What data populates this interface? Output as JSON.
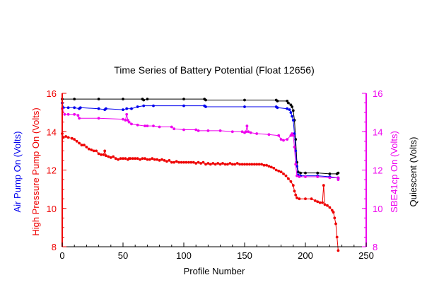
{
  "chart_data": {
    "type": "line",
    "title": "Time Series of Battery Potential (Float 12656)",
    "xlabel": "Profile Number",
    "y_left_labels": [
      {
        "text": "High Pressure Pump On (Volts)",
        "color": "#ee0000"
      },
      {
        "text": "Air Pump On (Volts)",
        "color": "#0000ee"
      }
    ],
    "y_right_labels": [
      {
        "text": "SBE41cp On (Volts)",
        "color": "#ee00ee"
      },
      {
        "text": "Quiescent (Volts)",
        "color": "#000000"
      }
    ],
    "xlim": [
      0,
      250
    ],
    "ylim": [
      8,
      16
    ],
    "x_ticks": [
      0,
      50,
      100,
      150,
      200,
      250
    ],
    "y_ticks": [
      8,
      10,
      12,
      14,
      16
    ],
    "colors": {
      "quiescent": "#000000",
      "air_pump": "#0000ee",
      "sbe41cp": "#ee00ee",
      "hp_pump": "#ee0000"
    },
    "series": [
      {
        "key": "quiescent",
        "points": [
          [
            0,
            15.7
          ],
          [
            10,
            15.7
          ],
          [
            30,
            15.7
          ],
          [
            50,
            15.7
          ],
          [
            66,
            15.7
          ],
          [
            67,
            15.65
          ],
          [
            70,
            15.7
          ],
          [
            100,
            15.7
          ],
          [
            117,
            15.7
          ],
          [
            118,
            15.65
          ],
          [
            150,
            15.65
          ],
          [
            176,
            15.65
          ],
          [
            177,
            15.6
          ],
          [
            185,
            15.6
          ],
          [
            186,
            15.5
          ],
          [
            188,
            15.4
          ],
          [
            189,
            15.3
          ],
          [
            190,
            15.1
          ],
          [
            191,
            14.6
          ],
          [
            192,
            13.6
          ],
          [
            193,
            12.4
          ],
          [
            194,
            11.9
          ],
          [
            196,
            11.85
          ],
          [
            200,
            11.85
          ],
          [
            210,
            11.85
          ],
          [
            220,
            11.8
          ],
          [
            226,
            11.8
          ],
          [
            227,
            11.85
          ]
        ]
      },
      {
        "key": "air_pump",
        "points": [
          [
            0,
            15.5
          ],
          [
            1,
            15.25
          ],
          [
            5,
            15.25
          ],
          [
            10,
            15.25
          ],
          [
            14,
            15.2
          ],
          [
            15,
            15.25
          ],
          [
            30,
            15.2
          ],
          [
            35,
            15.15
          ],
          [
            36,
            15.2
          ],
          [
            50,
            15.15
          ],
          [
            53,
            15.2
          ],
          [
            57,
            15.2
          ],
          [
            62,
            15.3
          ],
          [
            67,
            15.35
          ],
          [
            75,
            15.35
          ],
          [
            100,
            15.35
          ],
          [
            117,
            15.35
          ],
          [
            118,
            15.3
          ],
          [
            150,
            15.3
          ],
          [
            176,
            15.3
          ],
          [
            177,
            15.25
          ],
          [
            185,
            15.2
          ],
          [
            187,
            15.15
          ],
          [
            188,
            15.0
          ],
          [
            189,
            14.8
          ],
          [
            190,
            14.6
          ],
          [
            191,
            13.9
          ],
          [
            192,
            13.0
          ],
          [
            193,
            12.2
          ],
          [
            194,
            11.75
          ],
          [
            196,
            11.7
          ],
          [
            210,
            11.7
          ],
          [
            220,
            11.65
          ],
          [
            227,
            11.6
          ],
          [
            227,
            11.55
          ]
        ]
      },
      {
        "key": "sbe41cp",
        "points": [
          [
            0,
            15.2
          ],
          [
            2,
            14.9
          ],
          [
            5,
            14.9
          ],
          [
            10,
            14.9
          ],
          [
            13,
            14.85
          ],
          [
            14,
            14.7
          ],
          [
            30,
            14.7
          ],
          [
            50,
            14.65
          ],
          [
            52,
            14.6
          ],
          [
            53,
            14.9
          ],
          [
            54,
            14.6
          ],
          [
            55,
            14.5
          ],
          [
            57,
            14.4
          ],
          [
            62,
            14.35
          ],
          [
            68,
            14.3
          ],
          [
            70,
            14.3
          ],
          [
            75,
            14.3
          ],
          [
            80,
            14.25
          ],
          [
            90,
            14.25
          ],
          [
            92,
            14.15
          ],
          [
            100,
            14.1
          ],
          [
            110,
            14.1
          ],
          [
            112,
            14.05
          ],
          [
            120,
            14.05
          ],
          [
            130,
            14.05
          ],
          [
            140,
            14.0
          ],
          [
            148,
            14.0
          ],
          [
            150,
            13.95
          ],
          [
            151,
            14.0
          ],
          [
            152,
            14.3
          ],
          [
            153,
            14.0
          ],
          [
            155,
            13.95
          ],
          [
            160,
            13.9
          ],
          [
            170,
            13.85
          ],
          [
            178,
            13.8
          ],
          [
            180,
            13.6
          ],
          [
            182,
            13.55
          ],
          [
            185,
            13.6
          ],
          [
            188,
            13.8
          ],
          [
            189,
            13.9
          ],
          [
            190,
            13.8
          ],
          [
            191,
            13.2
          ],
          [
            192,
            12.3
          ],
          [
            193,
            11.7
          ],
          [
            195,
            11.65
          ],
          [
            200,
            11.65
          ],
          [
            210,
            11.65
          ],
          [
            220,
            11.6
          ],
          [
            227,
            11.6
          ],
          [
            227,
            11.5
          ]
        ]
      },
      {
        "key": "hp_pump",
        "points": [
          [
            0,
            13.9
          ],
          [
            1,
            13.7
          ],
          [
            3,
            13.75
          ],
          [
            5,
            13.7
          ],
          [
            8,
            13.65
          ],
          [
            10,
            13.6
          ],
          [
            12,
            13.5
          ],
          [
            14,
            13.4
          ],
          [
            16,
            13.3
          ],
          [
            18,
            13.3
          ],
          [
            20,
            13.2
          ],
          [
            22,
            13.1
          ],
          [
            24,
            13.05
          ],
          [
            26,
            13.0
          ],
          [
            28,
            13.0
          ],
          [
            30,
            12.85
          ],
          [
            32,
            12.8
          ],
          [
            34,
            12.8
          ],
          [
            35,
            13.0
          ],
          [
            36,
            12.75
          ],
          [
            38,
            12.7
          ],
          [
            40,
            12.65
          ],
          [
            42,
            12.7
          ],
          [
            44,
            12.6
          ],
          [
            46,
            12.55
          ],
          [
            48,
            12.6
          ],
          [
            50,
            12.6
          ],
          [
            52,
            12.6
          ],
          [
            54,
            12.55
          ],
          [
            55,
            12.6
          ],
          [
            56,
            12.6
          ],
          [
            58,
            12.6
          ],
          [
            60,
            12.6
          ],
          [
            62,
            12.6
          ],
          [
            64,
            12.55
          ],
          [
            66,
            12.6
          ],
          [
            68,
            12.6
          ],
          [
            70,
            12.55
          ],
          [
            72,
            12.55
          ],
          [
            74,
            12.6
          ],
          [
            76,
            12.55
          ],
          [
            78,
            12.55
          ],
          [
            80,
            12.5
          ],
          [
            82,
            12.55
          ],
          [
            84,
            12.5
          ],
          [
            86,
            12.45
          ],
          [
            88,
            12.5
          ],
          [
            90,
            12.4
          ],
          [
            92,
            12.4
          ],
          [
            94,
            12.45
          ],
          [
            96,
            12.4
          ],
          [
            98,
            12.4
          ],
          [
            100,
            12.4
          ],
          [
            102,
            12.4
          ],
          [
            104,
            12.4
          ],
          [
            106,
            12.4
          ],
          [
            108,
            12.4
          ],
          [
            110,
            12.35
          ],
          [
            112,
            12.4
          ],
          [
            114,
            12.35
          ],
          [
            116,
            12.4
          ],
          [
            118,
            12.3
          ],
          [
            120,
            12.35
          ],
          [
            122,
            12.3
          ],
          [
            124,
            12.35
          ],
          [
            126,
            12.3
          ],
          [
            128,
            12.35
          ],
          [
            130,
            12.3
          ],
          [
            132,
            12.35
          ],
          [
            134,
            12.3
          ],
          [
            136,
            12.3
          ],
          [
            138,
            12.35
          ],
          [
            140,
            12.3
          ],
          [
            142,
            12.3
          ],
          [
            144,
            12.35
          ],
          [
            146,
            12.3
          ],
          [
            148,
            12.3
          ],
          [
            150,
            12.3
          ],
          [
            152,
            12.3
          ],
          [
            154,
            12.3
          ],
          [
            156,
            12.3
          ],
          [
            158,
            12.3
          ],
          [
            160,
            12.3
          ],
          [
            162,
            12.3
          ],
          [
            164,
            12.3
          ],
          [
            166,
            12.25
          ],
          [
            168,
            12.25
          ],
          [
            170,
            12.2
          ],
          [
            172,
            12.15
          ],
          [
            174,
            12.1
          ],
          [
            176,
            12.0
          ],
          [
            178,
            11.95
          ],
          [
            180,
            11.9
          ],
          [
            182,
            11.8
          ],
          [
            184,
            11.7
          ],
          [
            186,
            11.55
          ],
          [
            188,
            11.4
          ],
          [
            190,
            11.2
          ],
          [
            191,
            10.9
          ],
          [
            192,
            10.7
          ],
          [
            193,
            10.55
          ],
          [
            195,
            10.5
          ],
          [
            200,
            10.5
          ],
          [
            205,
            10.5
          ],
          [
            208,
            10.4
          ],
          [
            210,
            10.35
          ],
          [
            212,
            10.3
          ],
          [
            214,
            10.3
          ],
          [
            215,
            11.2
          ],
          [
            216,
            10.2
          ],
          [
            218,
            10.15
          ],
          [
            220,
            10.05
          ],
          [
            222,
            9.9
          ],
          [
            223,
            9.8
          ],
          [
            224,
            9.5
          ],
          [
            225,
            9.2
          ],
          [
            226,
            8.5
          ],
          [
            227,
            7.8
          ]
        ]
      }
    ]
  }
}
